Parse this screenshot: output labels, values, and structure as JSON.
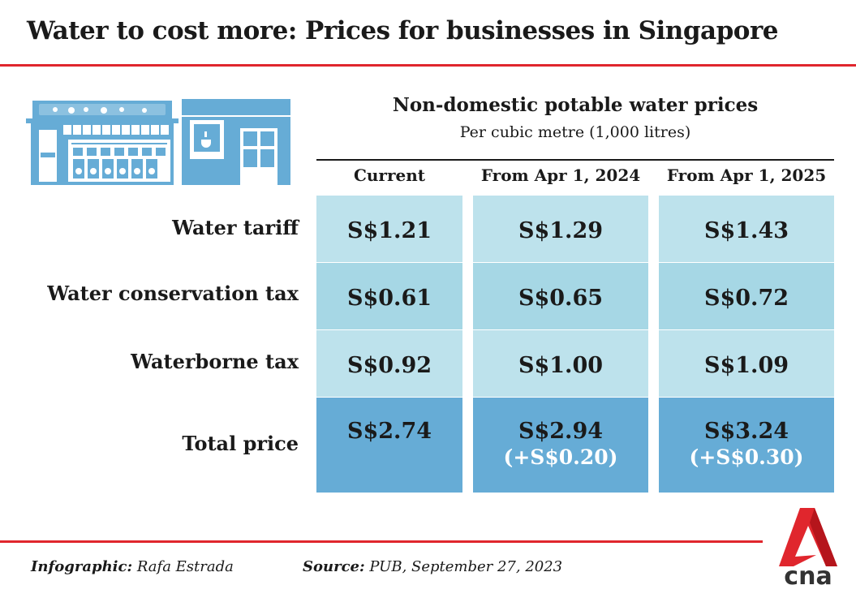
{
  "title": "Water to cost more: Prices for businesses in Singapore",
  "colors": {
    "accent": "#e0262d",
    "row_light": "#bde2ec",
    "row_mid": "#a6d7e5",
    "row_total": "#66acd6",
    "illustration": "#66acd6"
  },
  "chart_data": {
    "type": "table",
    "title": "Non-domestic potable water prices",
    "subtitle": "Per cubic metre (1,000 litres)",
    "columns": [
      "Current",
      "From Apr 1, 2024",
      "From Apr 1, 2025"
    ],
    "rows": [
      {
        "label": "Water tariff",
        "values": [
          "S$1.21",
          "S$1.29",
          "S$1.43"
        ],
        "changes": [
          "",
          "",
          ""
        ]
      },
      {
        "label": "Water conservation tax",
        "values": [
          "S$0.61",
          "S$0.65",
          "S$0.72"
        ],
        "changes": [
          "",
          "",
          ""
        ]
      },
      {
        "label": "Waterborne tax",
        "values": [
          "S$0.92",
          "S$1.00",
          "S$1.09"
        ],
        "changes": [
          "",
          "",
          ""
        ]
      },
      {
        "label": "Total price",
        "values": [
          "S$2.74",
          "S$2.94",
          "S$3.24"
        ],
        "changes": [
          "",
          "(+S$0.20)",
          "(+S$0.30)"
        ]
      }
    ]
  },
  "footer": {
    "credit_label": "Infographic:",
    "credit_value": "Rafa Estrada",
    "source_label": "Source:",
    "source_value": "PUB, September 27, 2023"
  },
  "logo": {
    "text": "cna"
  },
  "illustration": {
    "icon": "shopfront-illustration"
  }
}
